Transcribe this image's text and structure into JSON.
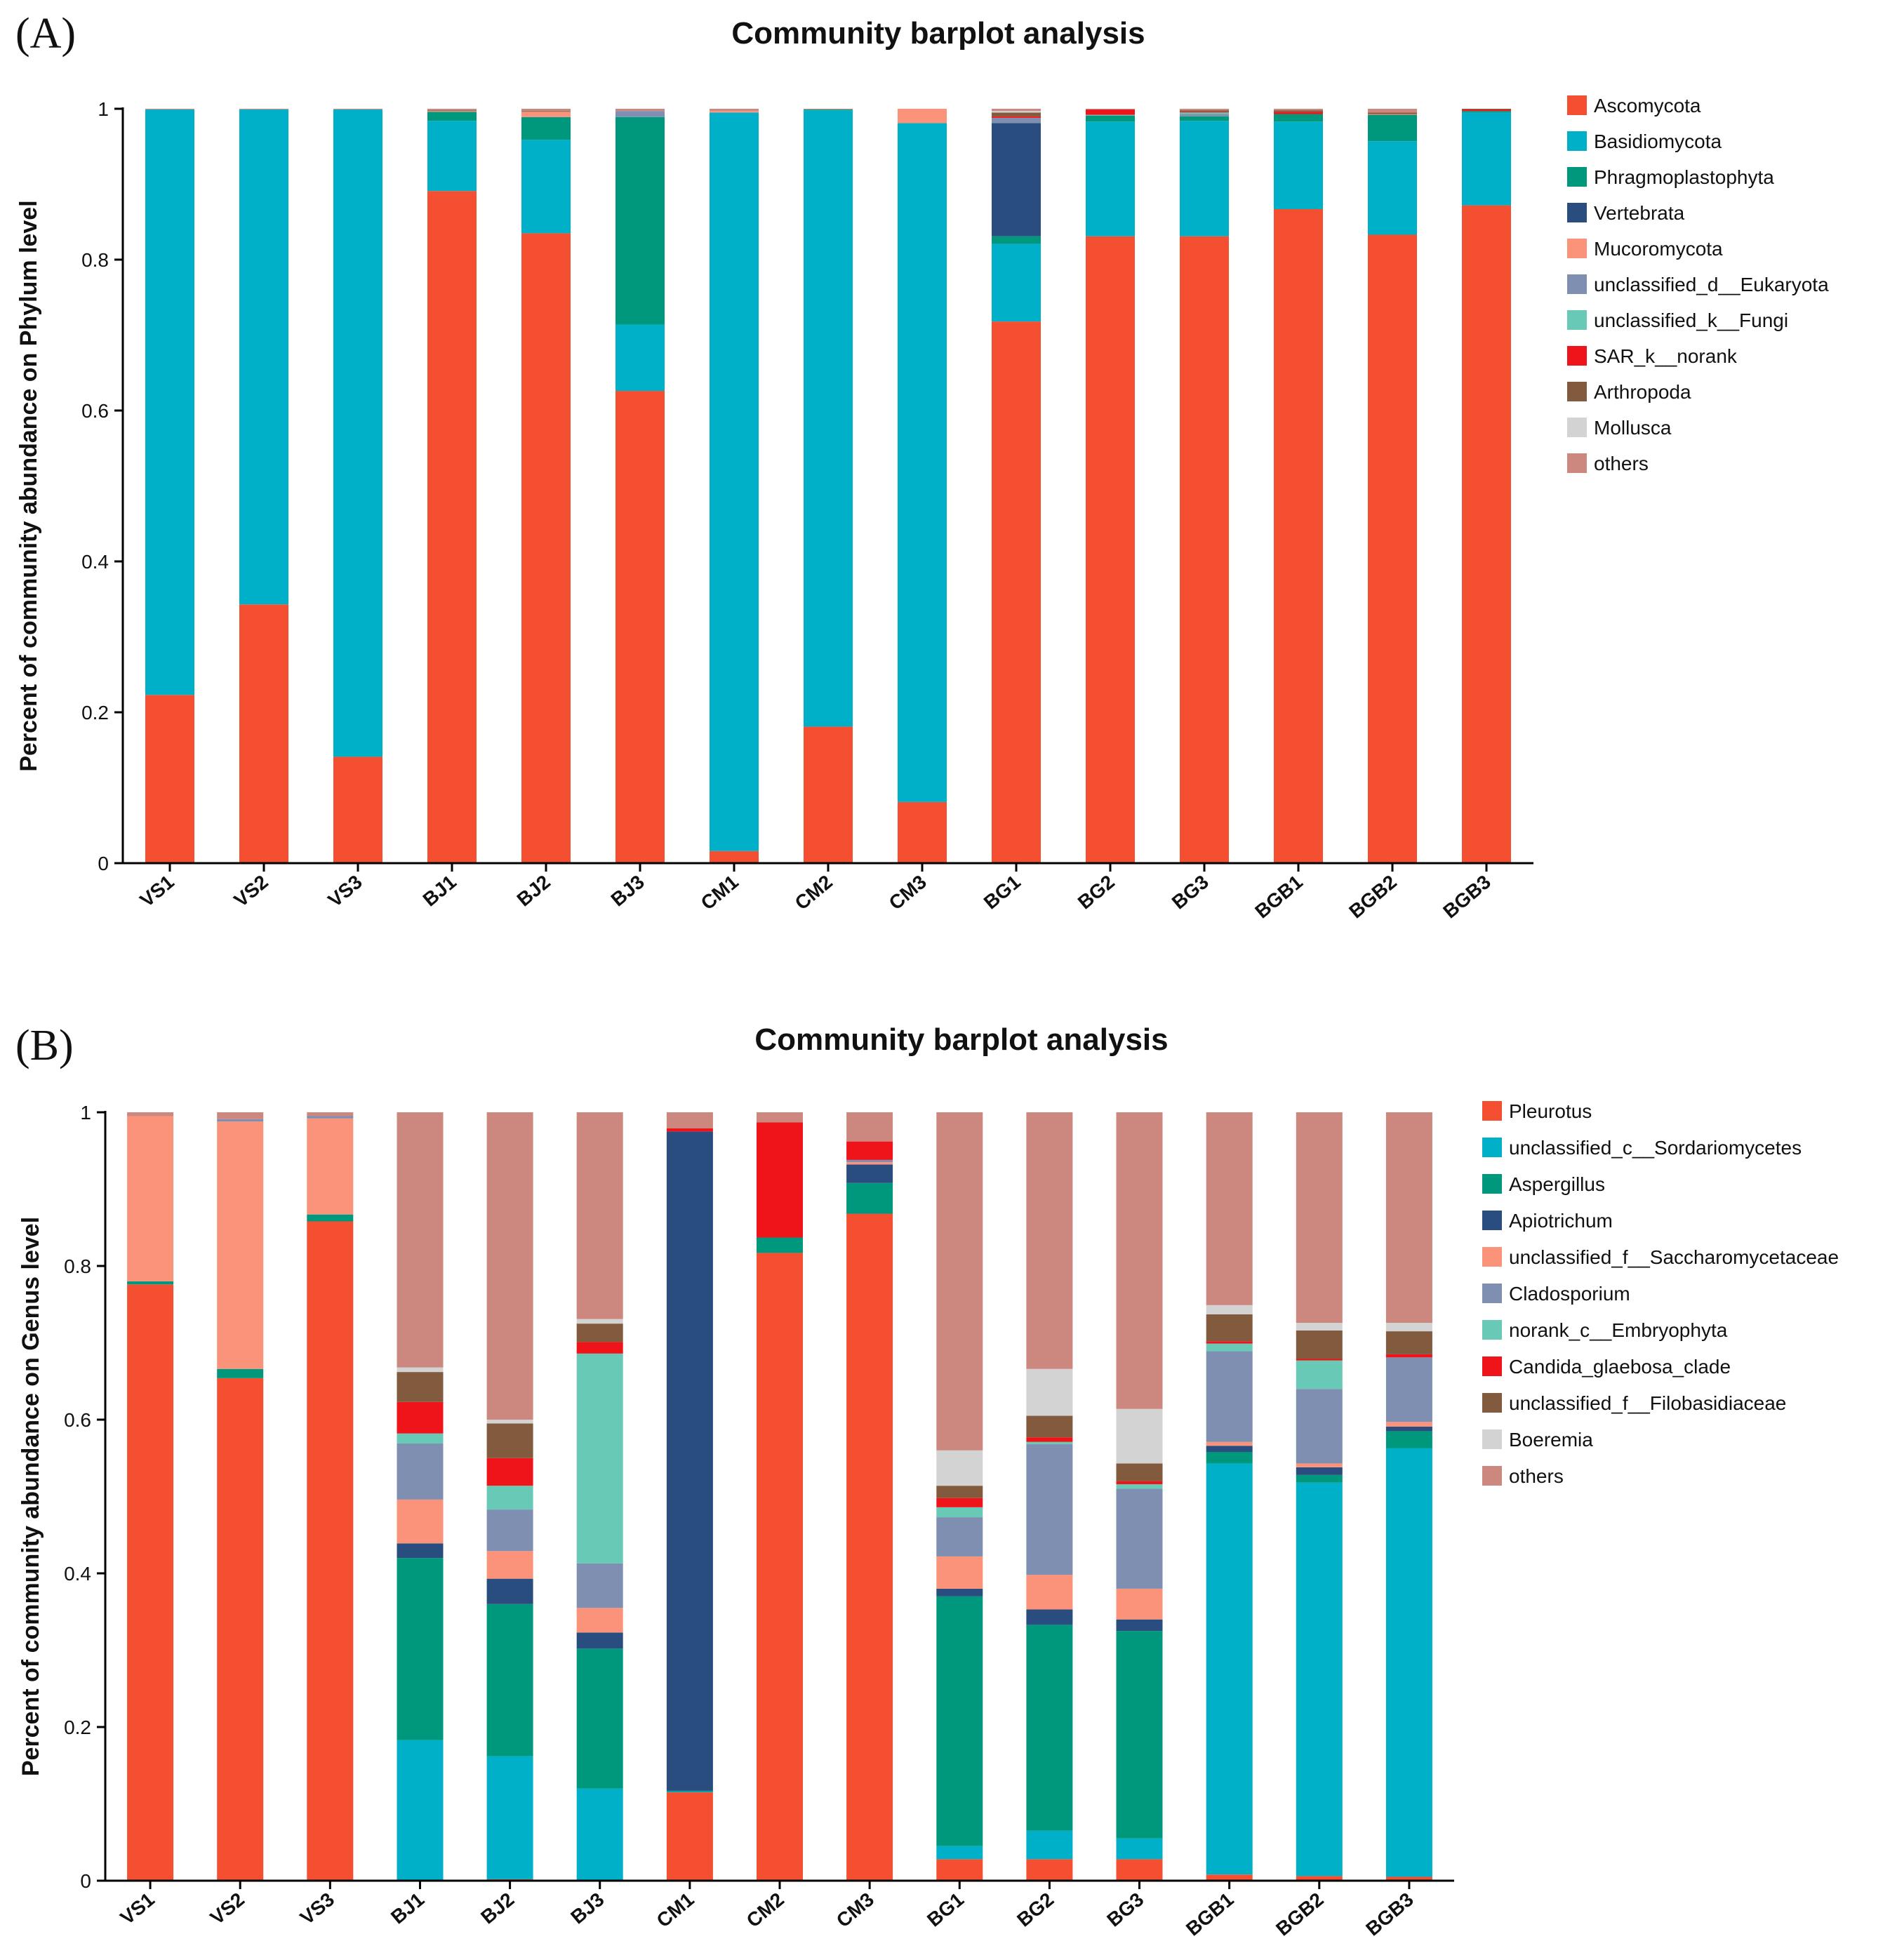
{
  "chart_data": [
    {
      "type": "bar",
      "stacked": true,
      "panel_label": "(A)",
      "title": "Community barplot analysis",
      "xlabel": "",
      "ylabel": "Percent of community abundance on Phylum level",
      "ylim": [
        0,
        1
      ],
      "yticks": [
        "0",
        "0.2",
        "0.4",
        "0.6",
        "0.8",
        "1"
      ],
      "legend_position": "right",
      "categories": [
        "VS1",
        "VS2",
        "VS3",
        "BJ1",
        "BJ2",
        "BJ3",
        "CM1",
        "CM2",
        "CM3",
        "BG1",
        "BG2",
        "BG3",
        "BGB1",
        "BGB2",
        "BGB3"
      ],
      "series": [
        {
          "name": "Ascomycota",
          "color": "#F44F31",
          "values": [
            0.223,
            0.343,
            0.141,
            0.891,
            0.835,
            0.626,
            0.016,
            0.181,
            0.081,
            0.718,
            0.831,
            0.831,
            0.867,
            0.833,
            0.872
          ]
        },
        {
          "name": "Basidiomycota",
          "color": "#00B0C8",
          "values": [
            0.776,
            0.656,
            0.858,
            0.093,
            0.124,
            0.088,
            0.979,
            0.817,
            0.9,
            0.103,
            0.152,
            0.153,
            0.116,
            0.124,
            0.123
          ]
        },
        {
          "name": "Phragmoplastophyta",
          "color": "#00987C",
          "values": [
            0.0,
            0.0,
            0.0,
            0.012,
            0.03,
            0.275,
            0.0,
            0.001,
            0.0,
            0.01,
            0.008,
            0.006,
            0.01,
            0.035,
            0.002
          ]
        },
        {
          "name": "Vertebrata",
          "color": "#2A4D80",
          "values": [
            0.0,
            0.0,
            0.0,
            0.0,
            0.0,
            0.0,
            0.0,
            0.0,
            0.0,
            0.15,
            0.0,
            0.0,
            0.0,
            0.0,
            0.0
          ]
        },
        {
          "name": "Mucoromycota",
          "color": "#FA9379",
          "values": [
            0.0,
            0.0,
            0.0,
            0.001,
            0.007,
            0.0,
            0.002,
            0.0,
            0.019,
            0.0,
            0.0,
            0.0,
            0.0,
            0.001,
            0.0
          ]
        },
        {
          "name": "unclassified_d__Eukaryota",
          "color": "#7E8FB2",
          "values": [
            0.0,
            0.0,
            0.0,
            0.0,
            0.0,
            0.008,
            0.0,
            0.0,
            0.0,
            0.007,
            0.0,
            0.003,
            0.0,
            0.0,
            0.0
          ]
        },
        {
          "name": "unclassified_k__Fungi",
          "color": "#68C9B6",
          "values": [
            0.0,
            0.0,
            0.0,
            0.0,
            0.0,
            0.0,
            0.0,
            0.0,
            0.0,
            0.0,
            0.001,
            0.002,
            0.0,
            0.0,
            0.0
          ]
        },
        {
          "name": "SAR_k__norank",
          "color": "#EE141A",
          "values": [
            0.0,
            0.0,
            0.0,
            0.0,
            0.0,
            0.0,
            0.0,
            0.0,
            0.0,
            0.002,
            0.007,
            0.001,
            0.003,
            0.0,
            0.002
          ]
        },
        {
          "name": "Arthropoda",
          "color": "#825A3E",
          "values": [
            0.0,
            0.0,
            0.0,
            0.001,
            0.001,
            0.0,
            0.0,
            0.0,
            0.0,
            0.005,
            0.0,
            0.002,
            0.002,
            0.002,
            0.001
          ]
        },
        {
          "name": "Mollusca",
          "color": "#D3D3D3",
          "values": [
            0.0,
            0.0,
            0.0,
            0.0,
            0.0,
            0.0,
            0.0,
            0.0,
            0.0,
            0.002,
            0.0,
            0.0,
            0.0,
            0.0,
            0.0
          ]
        },
        {
          "name": "others",
          "color": "#CC877F",
          "values": [
            0.001,
            0.001,
            0.001,
            0.002,
            0.003,
            0.003,
            0.003,
            0.001,
            0.0,
            0.003,
            0.001,
            0.002,
            0.002,
            0.005,
            0.0
          ]
        }
      ]
    },
    {
      "type": "bar",
      "stacked": true,
      "panel_label": "(B)",
      "title": "Community barplot analysis",
      "xlabel": "",
      "ylabel": "Percent of community abundance on Genus level",
      "ylim": [
        0,
        1
      ],
      "yticks": [
        "0",
        "0.2",
        "0.4",
        "0.6",
        "0.8",
        "1"
      ],
      "legend_position": "right",
      "categories": [
        "VS1",
        "VS2",
        "VS3",
        "BJ1",
        "BJ2",
        "BJ3",
        "CM1",
        "CM2",
        "CM3",
        "BG1",
        "BG2",
        "BG3",
        "BGB1",
        "BGB2",
        "BGB3"
      ],
      "series": [
        {
          "name": "Pleurotus",
          "color": "#F44F31",
          "values": [
            0.776,
            0.654,
            0.858,
            0.0,
            0.002,
            0.0,
            0.115,
            0.817,
            0.868,
            0.028,
            0.028,
            0.028,
            0.008,
            0.006,
            0.005
          ]
        },
        {
          "name": "unclassified_c__Sordariomycetes",
          "color": "#00B0C8",
          "values": [
            0.0,
            0.0,
            0.0,
            0.183,
            0.16,
            0.12,
            0.001,
            0.0,
            0.0,
            0.017,
            0.037,
            0.027,
            0.535,
            0.512,
            0.558
          ]
        },
        {
          "name": "Aspergillus",
          "color": "#00987C",
          "values": [
            0.004,
            0.012,
            0.009,
            0.237,
            0.198,
            0.182,
            0.001,
            0.02,
            0.04,
            0.325,
            0.268,
            0.27,
            0.015,
            0.01,
            0.022
          ]
        },
        {
          "name": "Apiotrichum",
          "color": "#2A4D80",
          "values": [
            0.0,
            0.0,
            0.0,
            0.019,
            0.033,
            0.021,
            0.858,
            0.0,
            0.024,
            0.01,
            0.02,
            0.015,
            0.008,
            0.01,
            0.006
          ]
        },
        {
          "name": "unclassified_f__Saccharomycetaceae",
          "color": "#FA9379",
          "values": [
            0.215,
            0.322,
            0.125,
            0.057,
            0.036,
            0.032,
            0.0,
            0.0,
            0.003,
            0.042,
            0.045,
            0.04,
            0.005,
            0.005,
            0.006
          ]
        },
        {
          "name": "Cladosporium",
          "color": "#7E8FB2",
          "values": [
            0.0,
            0.003,
            0.003,
            0.073,
            0.054,
            0.058,
            0.0,
            0.0,
            0.003,
            0.051,
            0.17,
            0.13,
            0.118,
            0.097,
            0.084
          ]
        },
        {
          "name": "norank_c__Embryophyta",
          "color": "#68C9B6",
          "values": [
            0.0,
            0.0,
            0.0,
            0.013,
            0.031,
            0.273,
            0.0,
            0.0,
            0.0,
            0.013,
            0.003,
            0.006,
            0.01,
            0.037,
            0.0
          ]
        },
        {
          "name": "Candida_glaebosa_clade",
          "color": "#EE141A",
          "values": [
            0.0,
            0.0,
            0.0,
            0.041,
            0.036,
            0.015,
            0.004,
            0.15,
            0.024,
            0.012,
            0.006,
            0.004,
            0.003,
            0.002,
            0.004
          ]
        },
        {
          "name": "unclassified_f__Filobasidiaceae",
          "color": "#825A3E",
          "values": [
            0.0,
            0.0,
            0.0,
            0.039,
            0.045,
            0.024,
            0.0,
            0.0,
            0.0,
            0.016,
            0.028,
            0.023,
            0.035,
            0.037,
            0.03
          ]
        },
        {
          "name": "Boeremia",
          "color": "#D3D3D3",
          "values": [
            0.0,
            0.0,
            0.0,
            0.006,
            0.005,
            0.006,
            0.0,
            0.0,
            0.0,
            0.046,
            0.061,
            0.071,
            0.012,
            0.01,
            0.011
          ]
        },
        {
          "name": "others",
          "color": "#CC877F",
          "values": [
            0.005,
            0.009,
            0.005,
            0.332,
            0.4,
            0.269,
            0.021,
            0.013,
            0.038,
            0.44,
            0.334,
            0.386,
            0.251,
            0.274,
            0.274
          ]
        }
      ]
    }
  ]
}
